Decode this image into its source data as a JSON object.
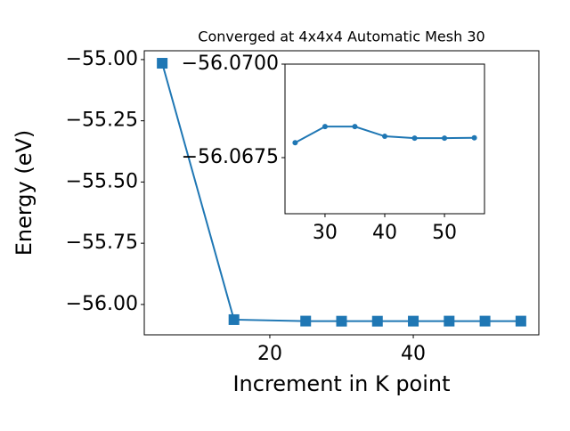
{
  "chart_data": [
    {
      "type": "line",
      "title": "Converged at 4x4x4 Automatic Mesh 30",
      "x_label": "Increment in K point",
      "y_label": "Energy (eV)",
      "x": [
        5,
        15,
        25,
        30,
        35,
        40,
        45,
        50,
        55
      ],
      "series": [
        {
          "color": "#1f77b4",
          "marker": "square",
          "values": [
            -55.015,
            -56.062,
            -56.0679,
            -56.0683,
            -56.0683,
            -56.0681,
            -56.068,
            -56.068,
            -56.068
          ]
        }
      ],
      "xlim": [
        2.5,
        57.5
      ],
      "xticks": [
        20,
        40
      ],
      "ylim": [
        -56.124,
        -54.964
      ],
      "yticks": [
        {
          "value": -56.0,
          "label": "−56.00"
        },
        {
          "value": -55.75,
          "label": "−55.75"
        },
        {
          "value": -55.5,
          "label": "−55.50"
        },
        {
          "value": -55.25,
          "label": "−55.25"
        },
        {
          "value": -55.0,
          "label": "−55.00"
        }
      ]
    },
    {
      "type": "line",
      "x": [
        25,
        30,
        35,
        40,
        45,
        50,
        55
      ],
      "series": [
        {
          "color": "#1f77b4",
          "marker": "circle",
          "values": [
            -56.0679,
            -56.06833,
            -56.06833,
            -56.06807,
            -56.06802,
            -56.06802,
            -56.06803
          ]
        }
      ],
      "xlim": [
        23.3,
        56.7
      ],
      "xticks": [
        30,
        40,
        50
      ],
      "ylim": [
        -56.066,
        -56.07
      ],
      "yticks": [
        {
          "value": -56.07,
          "label": "−56.0700"
        },
        {
          "value": -56.0675,
          "label": "−56.0675"
        }
      ]
    }
  ]
}
